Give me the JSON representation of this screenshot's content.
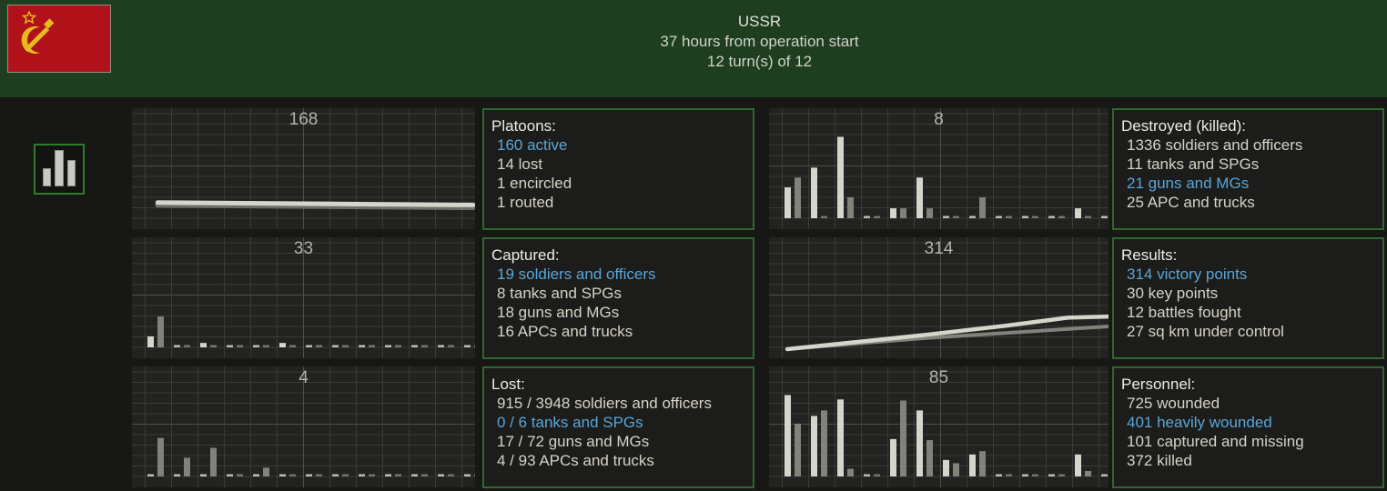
{
  "header": {
    "title": "USSR",
    "line2": "37 hours from operation start",
    "line3": "12 turn(s) of 12"
  },
  "sidebar": {
    "chart_button": "bar-chart-toggle"
  },
  "colors": {
    "header_green": "#1f3e1f",
    "panel_border_green": "#2d682d",
    "highlight_blue": "#58a6da",
    "text_normal": "#d6d3c6",
    "text_bright": "#efece2",
    "flag_red": "#b11219",
    "flag_gold": "#e6bb1e",
    "series_light": "#d6d5cc",
    "series_gray": "#82817a",
    "series_shadow": "#6e6d66"
  },
  "panels": [
    {
      "title": "Platoons:",
      "lines": [
        {
          "text": "160 active",
          "highlight": true
        },
        {
          "text": "14 lost",
          "highlight": false
        },
        {
          "text": "1 encircled",
          "highlight": false
        },
        {
          "text": "1 routed",
          "highlight": false
        }
      ]
    },
    {
      "title": "Destroyed (killed):",
      "lines": [
        {
          "text": "1336 soldiers and officers",
          "highlight": false
        },
        {
          "text": "11 tanks and SPGs",
          "highlight": false
        },
        {
          "text": "21 guns and MGs",
          "highlight": true
        },
        {
          "text": "25 APC and trucks",
          "highlight": false
        }
      ]
    },
    {
      "title": "Captured:",
      "lines": [
        {
          "text": "19 soldiers and officers",
          "highlight": true
        },
        {
          "text": "8 tanks and SPGs",
          "highlight": false
        },
        {
          "text": "18 guns and MGs",
          "highlight": false
        },
        {
          "text": "16 APCs and trucks",
          "highlight": false
        }
      ]
    },
    {
      "title": "Results:",
      "lines": [
        {
          "text": "314 victory points",
          "highlight": true
        },
        {
          "text": "30 key points",
          "highlight": false
        },
        {
          "text": "12 battles fought",
          "highlight": false
        },
        {
          "text": "27 sq km under control",
          "highlight": false
        }
      ]
    },
    {
      "title": "Lost:",
      "lines": [
        {
          "text": "915 / 3948 soldiers and officers",
          "highlight": false
        },
        {
          "text": "0 / 6 tanks and SPGs",
          "highlight": true
        },
        {
          "text": "17 / 72 guns and MGs",
          "highlight": false
        },
        {
          "text": "4 / 93 APCs and trucks",
          "highlight": false
        }
      ]
    },
    {
      "title": "Personnel:",
      "lines": [
        {
          "text": "725 wounded",
          "highlight": false
        },
        {
          "text": "401 heavily wounded",
          "highlight": true
        },
        {
          "text": "101 captured and missing",
          "highlight": false
        },
        {
          "text": "372 killed",
          "highlight": false
        }
      ]
    }
  ],
  "chart_data": [
    {
      "id": "platoons-trend",
      "type": "line",
      "peak_label": "168",
      "title": "",
      "xlabel": "",
      "ylabel": "",
      "ylim": [
        0,
        1
      ],
      "grid": true,
      "series": [
        {
          "name": "shadow",
          "color": "shadow",
          "width": 6,
          "points": [
            [
              0.075,
              0.8
            ],
            [
              0.55,
              0.81
            ],
            [
              0.995,
              0.82
            ]
          ]
        },
        {
          "name": "active platoons",
          "color": "light",
          "width": 5,
          "points": [
            [
              0.075,
              0.78
            ],
            [
              0.55,
              0.79
            ],
            [
              0.995,
              0.8
            ]
          ]
        }
      ]
    },
    {
      "id": "destroyed-per-turn",
      "type": "bar",
      "peak_label": "8",
      "title": "",
      "xlabel": "",
      "ylabel": "",
      "ylim": [
        0,
        1
      ],
      "grid": true,
      "pairs": [
        [
          0.28,
          0.37
        ],
        [
          0.46,
          0.02
        ],
        [
          0.74,
          0.19
        ],
        [
          0.02,
          0.02
        ],
        [
          0.09,
          0.09
        ],
        [
          0.37,
          0.09
        ],
        [
          0.02,
          0.02
        ],
        [
          0.02,
          0.19
        ],
        [
          0.02,
          0.02
        ],
        [
          0.02,
          0.02
        ],
        [
          0.02,
          0.02
        ],
        [
          0.09,
          0.02
        ],
        [
          0.02,
          0.02
        ]
      ]
    },
    {
      "id": "captured-per-turn",
      "type": "bar",
      "peak_label": "33",
      "title": "",
      "xlabel": "",
      "ylabel": "",
      "ylim": [
        0,
        1
      ],
      "grid": true,
      "pairs": [
        [
          0.1,
          0.28
        ],
        [
          0.02,
          0.02
        ],
        [
          0.04,
          0.02
        ],
        [
          0.02,
          0.02
        ],
        [
          0.02,
          0.02
        ],
        [
          0.04,
          0.02
        ],
        [
          0.02,
          0.02
        ],
        [
          0.02,
          0.02
        ],
        [
          0.02,
          0.02
        ],
        [
          0.02,
          0.02
        ],
        [
          0.02,
          0.02
        ],
        [
          0.02,
          0.02
        ],
        [
          0.02,
          0.02
        ]
      ]
    },
    {
      "id": "victory-points-trend",
      "type": "line",
      "peak_label": "314",
      "title": "",
      "xlabel": "",
      "ylabel": "",
      "ylim": [
        0,
        1
      ],
      "grid": true,
      "series": [
        {
          "name": "secondary",
          "color": "gray",
          "width": 4,
          "points": [
            [
              0.054,
              0.925
            ],
            [
              0.45,
              0.835
            ],
            [
              1.0,
              0.737
            ]
          ]
        },
        {
          "name": "victory points",
          "color": "light",
          "width": 4.5,
          "points": [
            [
              0.054,
              0.925
            ],
            [
              0.45,
              0.81
            ],
            [
              0.7,
              0.73
            ],
            [
              0.88,
              0.665
            ],
            [
              1.0,
              0.655
            ]
          ]
        }
      ]
    },
    {
      "id": "lost-per-turn",
      "type": "bar",
      "peak_label": "4",
      "title": "",
      "xlabel": "",
      "ylabel": "",
      "ylim": [
        0,
        1
      ],
      "grid": true,
      "pairs": [
        [
          0.02,
          0.35
        ],
        [
          0.02,
          0.17
        ],
        [
          0.02,
          0.26
        ],
        [
          0.02,
          0.02
        ],
        [
          0.02,
          0.08
        ],
        [
          0.02,
          0.02
        ],
        [
          0.02,
          0.02
        ],
        [
          0.02,
          0.02
        ],
        [
          0.02,
          0.02
        ],
        [
          0.02,
          0.02
        ],
        [
          0.02,
          0.02
        ],
        [
          0.02,
          0.02
        ],
        [
          0.02,
          0.02
        ]
      ]
    },
    {
      "id": "personnel-per-turn",
      "type": "bar",
      "peak_label": "85",
      "title": "",
      "xlabel": "",
      "ylabel": "",
      "ylim": [
        0,
        1
      ],
      "grid": true,
      "pairs": [
        [
          0.74,
          0.48
        ],
        [
          0.55,
          0.6
        ],
        [
          0.7,
          0.07
        ],
        [
          0.02,
          0.02
        ],
        [
          0.34,
          0.69
        ],
        [
          0.6,
          0.33
        ],
        [
          0.15,
          0.12
        ],
        [
          0.2,
          0.23
        ],
        [
          0.02,
          0.02
        ],
        [
          0.02,
          0.02
        ],
        [
          0.02,
          0.02
        ],
        [
          0.2,
          0.05
        ],
        [
          0.02,
          0.02
        ]
      ]
    }
  ]
}
